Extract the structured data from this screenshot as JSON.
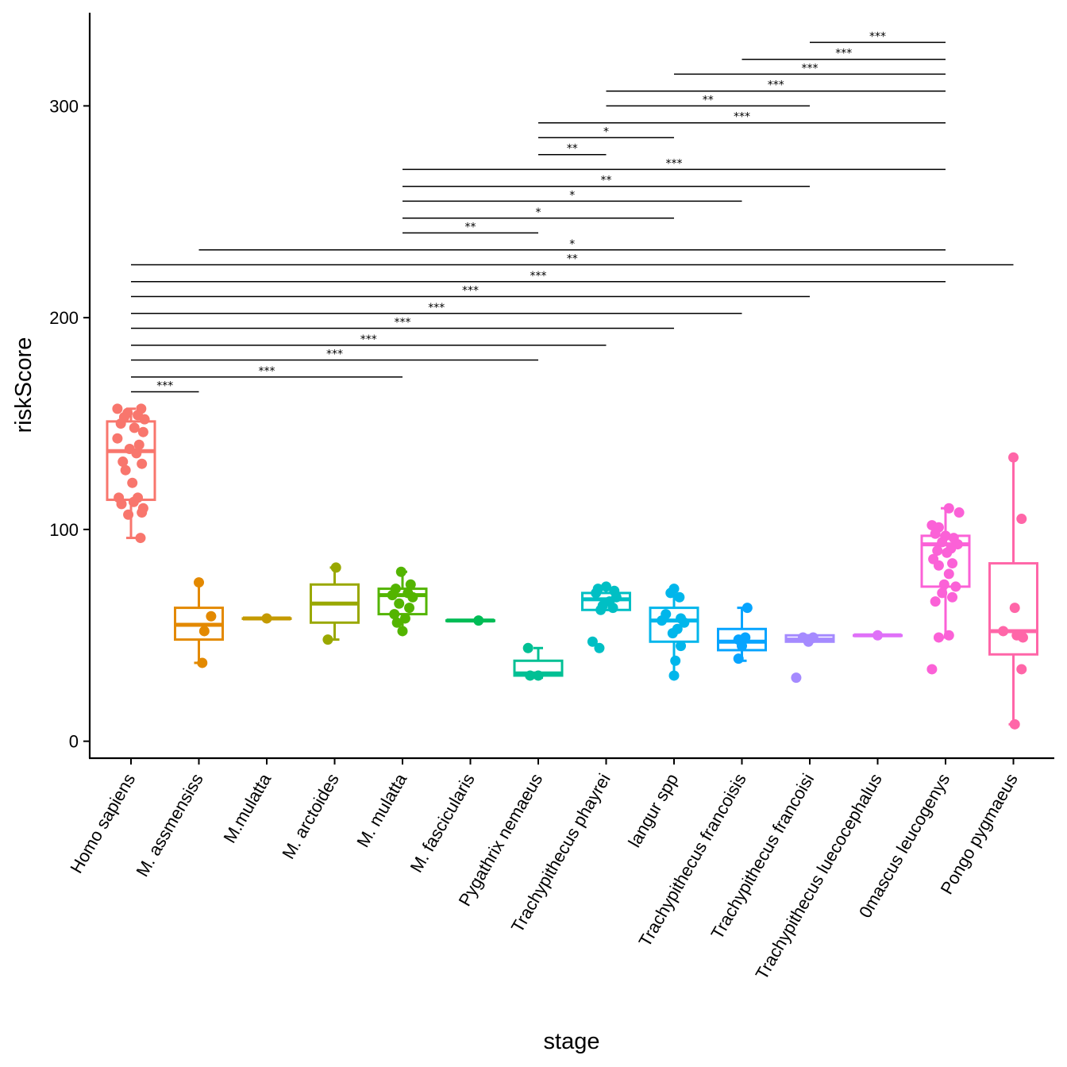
{
  "chart_data": {
    "type": "boxplot",
    "xlabel": "stage",
    "ylabel": "riskScore",
    "ylim": [
      -8,
      344
    ],
    "yticks": [
      0,
      100,
      200,
      300
    ],
    "categories": [
      "Homo sapiens",
      "M. assmensiss",
      "M.mulatta",
      "M. arctoides",
      "M. mulatta",
      "M. fascicularis",
      "Pygathrix nemaeus",
      "Trachypithecus phayrei",
      "langur spp",
      "Trachypithecus francoisis",
      "Trachypithecus francoisi",
      "Trachypithecus luecocephalus",
      "0mascus leucogenys",
      "Pongo pygmaeus"
    ],
    "colors": [
      "#F8766D",
      "#E38900",
      "#C49A00",
      "#99A800",
      "#53B400",
      "#00BC56",
      "#00C094",
      "#00BFC4",
      "#00B6EB",
      "#06A4FF",
      "#A58AFF",
      "#DF70F8",
      "#FB61D7",
      "#FF66A8"
    ],
    "boxes": [
      {
        "min": 96,
        "q1": 114,
        "median": 137,
        "q3": 151,
        "max": 157
      },
      {
        "min": 37,
        "q1": 48,
        "median": 55,
        "q3": 63,
        "max": 75
      },
      {
        "min": 58,
        "q1": 58,
        "median": 58,
        "q3": 58,
        "max": 58
      },
      {
        "min": 48,
        "q1": 56,
        "median": 65,
        "q3": 74,
        "max": 82
      },
      {
        "min": 52,
        "q1": 60,
        "median": 69,
        "q3": 72,
        "max": 80
      },
      {
        "min": 57,
        "q1": 57,
        "median": 57,
        "q3": 57,
        "max": 57
      },
      {
        "min": 30,
        "q1": 31,
        "median": 32,
        "q3": 38,
        "max": 44
      },
      {
        "min": 62,
        "q1": 62,
        "median": 67,
        "q3": 70,
        "max": 72
      },
      {
        "min": 31,
        "q1": 47,
        "median": 57,
        "q3": 63,
        "max": 72
      },
      {
        "min": 38,
        "q1": 43,
        "median": 47,
        "q3": 53,
        "max": 63
      },
      {
        "min": 47,
        "q1": 47,
        "median": 48,
        "q3": 50,
        "max": 50
      },
      {
        "min": 50,
        "q1": 50,
        "median": 50,
        "q3": 50,
        "max": 50
      },
      {
        "min": 49,
        "q1": 73,
        "median": 93,
        "q3": 97,
        "max": 110
      },
      {
        "min": 8,
        "q1": 41,
        "median": 52,
        "q3": 84,
        "max": 134
      }
    ],
    "points": [
      [
        [
          -0.2,
          157
        ],
        [
          0.15,
          157
        ],
        [
          -0.05,
          155
        ],
        [
          0.1,
          154
        ],
        [
          -0.1,
          153
        ],
        [
          0.2,
          152
        ],
        [
          -0.15,
          150
        ],
        [
          0.05,
          148
        ],
        [
          0.18,
          146
        ],
        [
          -0.2,
          143
        ],
        [
          0.12,
          140
        ],
        [
          -0.02,
          138
        ],
        [
          0.08,
          136
        ],
        [
          -0.12,
          132
        ],
        [
          0.16,
          131
        ],
        [
          -0.08,
          128
        ],
        [
          0.02,
          122
        ],
        [
          -0.18,
          115
        ],
        [
          0.1,
          115
        ],
        [
          0.04,
          113
        ],
        [
          -0.14,
          112
        ],
        [
          0.18,
          110
        ],
        [
          -0.04,
          107
        ],
        [
          0.16,
          108
        ],
        [
          0.14,
          96
        ]
      ],
      [
        [
          0.0,
          75
        ],
        [
          0.18,
          59
        ],
        [
          0.08,
          52
        ],
        [
          0.05,
          37
        ]
      ],
      [
        [
          0.0,
          58
        ]
      ],
      [
        [
          0.02,
          82
        ],
        [
          -0.1,
          48
        ]
      ],
      [
        [
          -0.02,
          80
        ],
        [
          0.12,
          74
        ],
        [
          -0.1,
          72
        ],
        [
          0.08,
          70
        ],
        [
          -0.15,
          69
        ],
        [
          0.15,
          68
        ],
        [
          -0.05,
          65
        ],
        [
          0.1,
          63
        ],
        [
          -0.12,
          60
        ],
        [
          0.04,
          58
        ],
        [
          -0.08,
          56
        ],
        [
          0.0,
          52
        ]
      ],
      [
        [
          0.12,
          57
        ]
      ],
      [
        [
          -0.15,
          44
        ],
        [
          -0.12,
          31
        ],
        [
          0.0,
          31
        ]
      ],
      [
        [
          -0.12,
          72
        ],
        [
          0.0,
          73
        ],
        [
          0.12,
          71
        ],
        [
          -0.15,
          70
        ],
        [
          0.15,
          68
        ],
        [
          0.05,
          66
        ],
        [
          -0.05,
          64
        ],
        [
          0.1,
          63
        ],
        [
          -0.08,
          62
        ],
        [
          -0.2,
          47
        ],
        [
          -0.1,
          44
        ]
      ],
      [
        [
          0.0,
          72
        ],
        [
          -0.05,
          70
        ],
        [
          0.08,
          68
        ],
        [
          -0.12,
          60
        ],
        [
          0.1,
          58
        ],
        [
          -0.18,
          57
        ],
        [
          0.15,
          56
        ],
        [
          0.05,
          53
        ],
        [
          -0.02,
          51
        ],
        [
          0.1,
          45
        ],
        [
          0.02,
          38
        ],
        [
          0.0,
          31
        ]
      ],
      [
        [
          0.08,
          63
        ],
        [
          0.05,
          49
        ],
        [
          -0.05,
          48
        ],
        [
          0.0,
          45
        ],
        [
          -0.05,
          39
        ]
      ],
      [
        [
          -0.1,
          49
        ],
        [
          0.05,
          49
        ],
        [
          -0.02,
          47
        ],
        [
          -0.2,
          30
        ]
      ],
      [
        [
          0.0,
          50
        ]
      ],
      [
        [
          -0.2,
          102
        ],
        [
          -0.1,
          101
        ],
        [
          0.05,
          110
        ],
        [
          0.2,
          108
        ],
        [
          -0.15,
          98
        ],
        [
          0.0,
          97
        ],
        [
          0.12,
          96
        ],
        [
          -0.05,
          94
        ],
        [
          0.18,
          93
        ],
        [
          0.08,
          91
        ],
        [
          -0.12,
          90
        ],
        [
          0.02,
          89
        ],
        [
          -0.18,
          86
        ],
        [
          0.1,
          84
        ],
        [
          -0.1,
          83
        ],
        [
          0.05,
          79
        ],
        [
          -0.02,
          74
        ],
        [
          0.15,
          73
        ],
        [
          -0.05,
          70
        ],
        [
          0.1,
          68
        ],
        [
          -0.15,
          66
        ],
        [
          -0.1,
          49
        ],
        [
          0.05,
          50
        ],
        [
          -0.2,
          34
        ]
      ],
      [
        [
          0.0,
          134
        ],
        [
          0.12,
          105
        ],
        [
          0.02,
          63
        ],
        [
          -0.15,
          52
        ],
        [
          0.05,
          50
        ],
        [
          0.14,
          49
        ],
        [
          0.12,
          34
        ],
        [
          0.02,
          8
        ]
      ]
    ],
    "comparisons": [
      {
        "from": 1,
        "to": 2,
        "y": 165,
        "label": "***"
      },
      {
        "from": 1,
        "to": 5,
        "y": 172,
        "label": "***"
      },
      {
        "from": 1,
        "to": 7,
        "y": 180,
        "label": "***"
      },
      {
        "from": 1,
        "to": 8,
        "y": 187,
        "label": "***"
      },
      {
        "from": 1,
        "to": 9,
        "y": 195,
        "label": "***"
      },
      {
        "from": 1,
        "to": 10,
        "y": 202,
        "label": "***"
      },
      {
        "from": 1,
        "to": 11,
        "y": 210,
        "label": "***"
      },
      {
        "from": 1,
        "to": 13,
        "y": 217,
        "label": "***"
      },
      {
        "from": 1,
        "to": 14,
        "y": 225,
        "label": "**"
      },
      {
        "from": 2,
        "to": 13,
        "y": 232,
        "label": "*"
      },
      {
        "from": 5,
        "to": 7,
        "y": 240,
        "label": "**"
      },
      {
        "from": 5,
        "to": 9,
        "y": 247,
        "label": "*"
      },
      {
        "from": 5,
        "to": 10,
        "y": 255,
        "label": "*"
      },
      {
        "from": 5,
        "to": 11,
        "y": 262,
        "label": "**"
      },
      {
        "from": 5,
        "to": 13,
        "y": 270,
        "label": "***"
      },
      {
        "from": 7,
        "to": 8,
        "y": 277,
        "label": "**"
      },
      {
        "from": 7,
        "to": 9,
        "y": 285,
        "label": "*"
      },
      {
        "from": 7,
        "to": 13,
        "y": 292,
        "label": "***"
      },
      {
        "from": 8,
        "to": 11,
        "y": 300,
        "label": "**"
      },
      {
        "from": 8,
        "to": 13,
        "y": 307,
        "label": "***"
      },
      {
        "from": 9,
        "to": 13,
        "y": 315,
        "label": "***"
      },
      {
        "from": 10,
        "to": 13,
        "y": 322,
        "label": "***"
      },
      {
        "from": 11,
        "to": 13,
        "y": 330,
        "label": "***"
      }
    ]
  }
}
